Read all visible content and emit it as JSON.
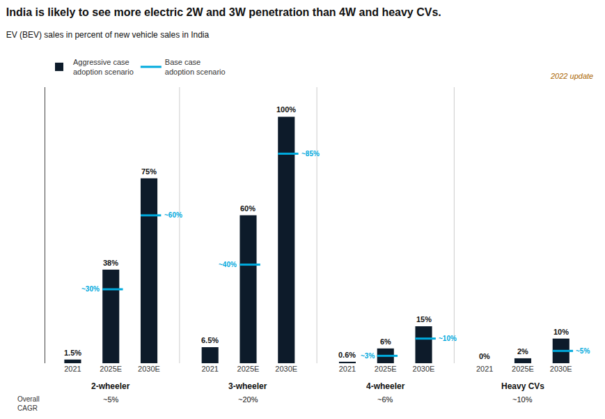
{
  "chart_data": {
    "type": "bar",
    "title": "India is likely to see more electric 2W and 3W penetration than 4W and heavy CVs.",
    "subtitle": "EV (BEV) sales in percent of new vehicle sales in India",
    "categories": [
      "2-wheeler",
      "3-wheeler",
      "4-wheeler",
      "Heavy CVs"
    ],
    "years": [
      "2021",
      "2025E",
      "2030E"
    ],
    "series": [
      {
        "name": "Aggressive case\nadoption scenario",
        "type": "bar",
        "color": "#0d1b2a",
        "values": [
          [
            1.5,
            38,
            75
          ],
          [
            6.5,
            60,
            100
          ],
          [
            0.6,
            6,
            15
          ],
          [
            0,
            2,
            10
          ]
        ],
        "value_labels": [
          [
            "1.5%",
            "38%",
            "75%"
          ],
          [
            "6.5%",
            "60%",
            "100%"
          ],
          [
            "0.6%",
            "6%",
            "15%"
          ],
          [
            "0%",
            "2%",
            "10%"
          ]
        ]
      },
      {
        "name": "Base case\nadoption scenario",
        "type": "line",
        "color": "#00aadd",
        "values": [
          [
            null,
            30,
            60
          ],
          [
            null,
            40,
            85
          ],
          [
            null,
            3,
            10
          ],
          [
            null,
            null,
            5
          ]
        ],
        "value_labels": [
          [
            null,
            "~30%",
            "~60%"
          ],
          [
            null,
            "~40%",
            "~85%"
          ],
          [
            null,
            "~3%",
            "~10%"
          ],
          [
            null,
            null,
            "~5%"
          ]
        ]
      }
    ],
    "overall_cagr_title": "Overall\nCAGR",
    "overall_cagr": [
      "~5%",
      "~20%",
      "~6%",
      "~10%"
    ],
    "annotations": [
      {
        "text": "2022 update",
        "color": "#aa6600"
      }
    ],
    "ylim": [
      0,
      112
    ],
    "yticks": [],
    "tick_labels": "x",
    "grid": false,
    "data_labels": true,
    "legend": "top"
  }
}
